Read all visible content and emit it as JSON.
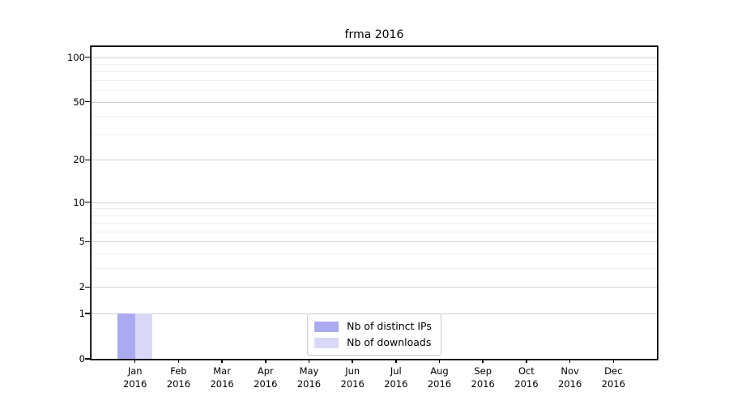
{
  "chart_data": {
    "type": "bar",
    "title": "frma 2016",
    "categories": [
      {
        "month": "Jan",
        "year": "2016"
      },
      {
        "month": "Feb",
        "year": "2016"
      },
      {
        "month": "Mar",
        "year": "2016"
      },
      {
        "month": "Apr",
        "year": "2016"
      },
      {
        "month": "May",
        "year": "2016"
      },
      {
        "month": "Jun",
        "year": "2016"
      },
      {
        "month": "Jul",
        "year": "2016"
      },
      {
        "month": "Aug",
        "year": "2016"
      },
      {
        "month": "Sep",
        "year": "2016"
      },
      {
        "month": "Oct",
        "year": "2016"
      },
      {
        "month": "Nov",
        "year": "2016"
      },
      {
        "month": "Dec",
        "year": "2016"
      }
    ],
    "series": [
      {
        "name": "Nb of distinct IPs",
        "color": "#aaaaf0",
        "values": [
          1,
          0,
          0,
          0,
          0,
          0,
          0,
          0,
          0,
          0,
          0,
          0
        ]
      },
      {
        "name": "Nb of downloads",
        "color": "#d9d9f7",
        "values": [
          1,
          0,
          0,
          0,
          0,
          0,
          0,
          0,
          0,
          0,
          0,
          0
        ]
      }
    ],
    "y_scale": "log10(1+x)",
    "y_ticks": [
      0,
      1,
      2,
      5,
      10,
      20,
      50,
      100
    ],
    "y_minor_ticks": [
      3,
      4,
      6,
      7,
      8,
      9,
      30,
      40,
      60,
      70,
      80,
      90
    ],
    "ylim": [
      0,
      117
    ],
    "xlabel": "",
    "ylabel": "",
    "grid": "horizontal",
    "legend_position": "lower center"
  }
}
